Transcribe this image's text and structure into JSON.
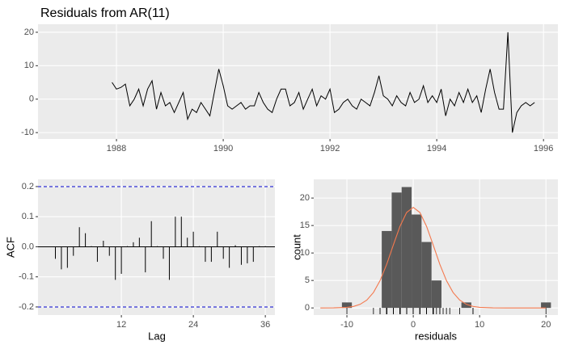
{
  "chart_data": [
    {
      "type": "line",
      "title": "Residuals from AR(11)",
      "color": "#000000",
      "grid": true,
      "x": [
        1987.917,
        1988,
        1988.083,
        1988.167,
        1988.25,
        1988.333,
        1988.417,
        1988.5,
        1988.583,
        1988.667,
        1988.75,
        1988.833,
        1988.917,
        1989,
        1989.083,
        1989.167,
        1989.25,
        1989.333,
        1989.417,
        1989.5,
        1989.583,
        1989.667,
        1989.75,
        1989.833,
        1989.917,
        1990,
        1990.083,
        1990.167,
        1990.25,
        1990.333,
        1990.417,
        1990.5,
        1990.583,
        1990.667,
        1990.75,
        1990.833,
        1990.917,
        1991,
        1991.083,
        1991.167,
        1991.25,
        1991.333,
        1991.417,
        1991.5,
        1991.583,
        1991.667,
        1991.75,
        1991.833,
        1991.917,
        1992,
        1992.083,
        1992.167,
        1992.25,
        1992.333,
        1992.417,
        1992.5,
        1992.583,
        1992.667,
        1992.75,
        1992.833,
        1992.917,
        1993,
        1993.083,
        1993.167,
        1993.25,
        1993.333,
        1993.417,
        1993.5,
        1993.583,
        1993.667,
        1993.75,
        1993.833,
        1993.917,
        1994,
        1994.083,
        1994.167,
        1994.25,
        1994.333,
        1994.417,
        1994.5,
        1994.583,
        1994.667,
        1994.75,
        1994.833,
        1994.917,
        1995,
        1995.083,
        1995.167,
        1995.25,
        1995.333,
        1995.417,
        1995.5,
        1995.583,
        1995.667,
        1995.75,
        1995.833
      ],
      "values": [
        5,
        3,
        3.5,
        4.5,
        -2,
        0,
        3,
        -2,
        3,
        5.5,
        -3,
        2,
        -2,
        -1,
        -4,
        -1,
        2,
        -6,
        -3,
        -4,
        -1,
        -3,
        -5,
        2,
        9,
        4,
        -2,
        -3,
        -2,
        -1,
        -3,
        -2,
        -2,
        2,
        -1,
        -3,
        -4,
        0,
        3,
        3,
        -2,
        -1,
        2,
        -3,
        0,
        3,
        -2,
        1,
        0,
        3,
        -4,
        -3,
        -1,
        0,
        -2,
        -3,
        0,
        -1,
        -2,
        2,
        7,
        1,
        0,
        -2,
        1,
        -1,
        -2,
        2,
        -1,
        0,
        4,
        -1,
        1,
        -1,
        3,
        -5,
        0,
        -2,
        2,
        -1,
        3,
        -1,
        1,
        -4,
        3,
        9,
        2,
        -3,
        -3,
        20,
        -10,
        -4,
        -2,
        -1,
        -2,
        -1
      ],
      "xlim": [
        1986.53,
        1996.27
      ],
      "xticks": [
        1988,
        1990,
        1992,
        1994,
        1996
      ],
      "ylim": [
        -11.9,
        22.4
      ],
      "yticks": [
        -10,
        0,
        10,
        20
      ]
    },
    {
      "type": "acf",
      "x_label": "Lag",
      "y_label": "ACF",
      "color": "#000000",
      "grid": true,
      "conf_limits": [
        -0.2,
        0.2
      ],
      "conf_color": "#0000cc",
      "x": [
        1,
        2,
        3,
        4,
        5,
        6,
        7,
        8,
        9,
        10,
        11,
        12,
        13,
        14,
        15,
        16,
        17,
        18,
        19,
        20,
        21,
        22,
        23,
        24,
        25,
        26,
        27,
        28,
        29,
        30,
        31,
        32,
        33,
        34,
        35,
        36
      ],
      "values": [
        -0.04,
        -0.075,
        -0.07,
        -0.03,
        0.065,
        0.045,
        0.002,
        -0.05,
        0.02,
        -0.03,
        -0.11,
        -0.09,
        0.002,
        0.015,
        0.03,
        -0.085,
        0.085,
        0.002,
        -0.04,
        -0.11,
        0.1,
        0.1,
        0.03,
        0.05,
        0.002,
        -0.05,
        -0.05,
        0.05,
        -0.04,
        -0.07,
        0.005,
        -0.06,
        -0.055,
        -0.05,
        0.002,
        0.002
      ],
      "xlim": [
        -1.9,
        37.6
      ],
      "xticks": [
        12,
        24,
        36
      ],
      "ylim": [
        -0.227,
        0.224
      ],
      "yticks": [
        -0.2,
        -0.1,
        {
          "value": 0,
          "label": "0.0"
        },
        0.1,
        0.2
      ]
    },
    {
      "type": "histogram",
      "x_label": "residuals",
      "y_label": "count",
      "color": "#595959",
      "grid": true,
      "bins": [
        -10.75,
        -9.25,
        -7.75,
        -6.25,
        -4.75,
        -3.25,
        -1.75,
        -0.25,
        1.25,
        2.75,
        4.25,
        5.75,
        7.25,
        8.75,
        10.25,
        11.75,
        13.25,
        14.75,
        16.25,
        17.75,
        19.25,
        20.75
      ],
      "values": [
        1,
        0,
        0,
        0,
        14,
        21,
        22,
        17,
        12,
        5,
        0,
        0,
        1,
        0,
        0,
        0,
        0,
        0,
        0,
        0,
        1
      ],
      "density_curve": {
        "color": "#f4794e",
        "x": [
          -14,
          -12,
          -10,
          -9,
          -8,
          -7,
          -6,
          -5,
          -4,
          -3,
          -2,
          -1,
          0,
          1,
          2,
          3,
          4,
          5,
          6,
          7,
          8,
          9,
          10,
          12,
          14,
          16,
          18,
          20
        ],
        "values": [
          0,
          0.01,
          0.1,
          0.27,
          0.66,
          1.43,
          2.81,
          4.98,
          7.96,
          11.46,
          14.86,
          17.37,
          18.3,
          17.37,
          14.86,
          11.46,
          7.96,
          4.98,
          2.81,
          1.43,
          0.66,
          0.27,
          0.1,
          0.01,
          0,
          0,
          0,
          0
        ]
      },
      "rug_color": "#000000",
      "xlim": [
        -15,
        21.8
      ],
      "xticks": [
        -10,
        0,
        10,
        20
      ],
      "ylim": [
        -1.3,
        23.4
      ],
      "yticks": [
        0,
        5,
        10,
        15,
        20
      ]
    }
  ]
}
